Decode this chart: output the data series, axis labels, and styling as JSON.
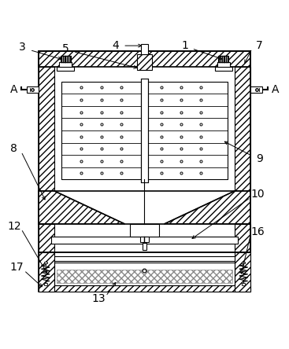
{
  "background_color": "#ffffff",
  "figsize": [
    3.67,
    4.44
  ],
  "dpi": 100,
  "ox": 0.13,
  "oy": 0.09,
  "ow": 0.74,
  "oh": 0.84,
  "wall": 0.055,
  "label_fs": 10
}
